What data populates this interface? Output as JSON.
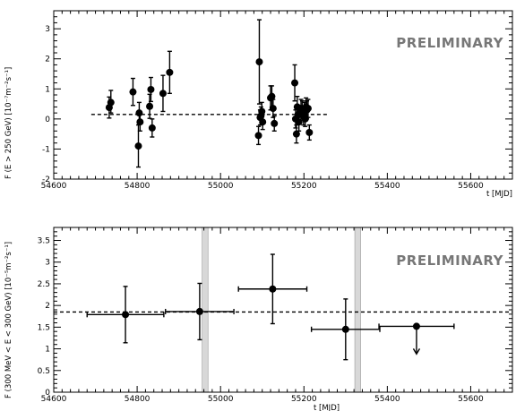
{
  "chart_data": [
    {
      "type": "scatter",
      "panel": "top",
      "watermark": "PRELIMINARY",
      "xlabel": "t [MJD]",
      "ylabel": "F (E > 250 GeV) [10⁻⁷m⁻²s⁻¹]",
      "xlim": [
        54600,
        55700
      ],
      "ylim": [
        -2,
        3.6
      ],
      "x_ticks": [
        54600,
        54800,
        55000,
        55200,
        55400,
        55600
      ],
      "y_ticks": [
        -2,
        -1,
        0,
        1,
        2,
        3
      ],
      "grid": false,
      "reference_line": {
        "y": 0.15,
        "x_range": [
          54690,
          55260
        ],
        "style": "dashed"
      },
      "points": [
        {
          "x": 54733,
          "y": 0.38,
          "err_lo": 0.35,
          "err_hi": 0.35
        },
        {
          "x": 54737,
          "y": 0.55,
          "err_lo": 0.35,
          "err_hi": 0.4
        },
        {
          "x": 54790,
          "y": 0.9,
          "err_lo": 0.45,
          "err_hi": 0.45
        },
        {
          "x": 54803,
          "y": -0.9,
          "err_lo": 0.7,
          "err_hi": 0.7
        },
        {
          "x": 54805,
          "y": 0.2,
          "err_lo": 0.35,
          "err_hi": 0.35
        },
        {
          "x": 54807,
          "y": -0.1,
          "err_lo": 0.3,
          "err_hi": 0.3
        },
        {
          "x": 54830,
          "y": 0.42,
          "err_lo": 0.4,
          "err_hi": 0.4
        },
        {
          "x": 54833,
          "y": 0.98,
          "err_lo": 0.4,
          "err_hi": 0.4
        },
        {
          "x": 54836,
          "y": -0.3,
          "err_lo": 0.3,
          "err_hi": 0.3
        },
        {
          "x": 54862,
          "y": 0.85,
          "err_lo": 0.6,
          "err_hi": 0.6
        },
        {
          "x": 54878,
          "y": 1.55,
          "err_lo": 0.7,
          "err_hi": 0.7
        },
        {
          "x": 55091,
          "y": -0.55,
          "err_lo": 0.3,
          "err_hi": 0.3
        },
        {
          "x": 55093,
          "y": 1.9,
          "err_lo": 1.4,
          "err_hi": 1.4
        },
        {
          "x": 55095,
          "y": 0.05,
          "err_lo": 0.25,
          "err_hi": 0.25
        },
        {
          "x": 55097,
          "y": 0.1,
          "err_lo": 0.3,
          "err_hi": 0.3
        },
        {
          "x": 55099,
          "y": 0.25,
          "err_lo": 0.3,
          "err_hi": 0.3
        },
        {
          "x": 55101,
          "y": -0.1,
          "err_lo": 0.25,
          "err_hi": 0.25
        },
        {
          "x": 55120,
          "y": 0.7,
          "err_lo": 0.4,
          "err_hi": 0.4
        },
        {
          "x": 55123,
          "y": 0.75,
          "err_lo": 0.35,
          "err_hi": 0.35
        },
        {
          "x": 55126,
          "y": 0.35,
          "err_lo": 0.3,
          "err_hi": 0.3
        },
        {
          "x": 55129,
          "y": -0.15,
          "err_lo": 0.25,
          "err_hi": 0.25
        },
        {
          "x": 55178,
          "y": 1.2,
          "err_lo": 0.6,
          "err_hi": 0.6
        },
        {
          "x": 55180,
          "y": 0.0,
          "err_lo": 0.3,
          "err_hi": 0.3
        },
        {
          "x": 55182,
          "y": -0.5,
          "err_lo": 0.3,
          "err_hi": 0.3
        },
        {
          "x": 55184,
          "y": 0.4,
          "err_lo": 0.35,
          "err_hi": 0.35
        },
        {
          "x": 55186,
          "y": 0.15,
          "err_lo": 0.3,
          "err_hi": 0.3
        },
        {
          "x": 55188,
          "y": -0.1,
          "err_lo": 0.3,
          "err_hi": 0.3
        },
        {
          "x": 55193,
          "y": 0.35,
          "err_lo": 0.3,
          "err_hi": 0.3
        },
        {
          "x": 55196,
          "y": 0.3,
          "err_lo": 0.3,
          "err_hi": 0.3
        },
        {
          "x": 55199,
          "y": 0.1,
          "err_lo": 0.3,
          "err_hi": 0.3
        },
        {
          "x": 55201,
          "y": 0.25,
          "err_lo": 0.3,
          "err_hi": 0.3
        },
        {
          "x": 55203,
          "y": 0.0,
          "err_lo": 0.25,
          "err_hi": 0.25
        },
        {
          "x": 55205,
          "y": 0.4,
          "err_lo": 0.3,
          "err_hi": 0.3
        },
        {
          "x": 55207,
          "y": 0.3,
          "err_lo": 0.3,
          "err_hi": 0.3
        },
        {
          "x": 55210,
          "y": 0.35,
          "err_lo": 0.3,
          "err_hi": 0.3
        },
        {
          "x": 55213,
          "y": -0.45,
          "err_lo": 0.25,
          "err_hi": 0.25
        }
      ]
    },
    {
      "type": "scatter",
      "panel": "bottom",
      "watermark": "PRELIMINARY",
      "xlabel": "t [MJD]",
      "ylabel": "F (300 MeV < E < 300 GeV) [10⁻⁵m⁻²s⁻¹]",
      "xlim": [
        54600,
        55700
      ],
      "ylim": [
        0,
        3.8
      ],
      "x_ticks": [
        54600,
        54800,
        55000,
        55200,
        55400,
        55600
      ],
      "y_ticks": [
        0,
        0.5,
        1,
        1.5,
        2,
        2.5,
        3,
        3.5
      ],
      "grid": false,
      "reference_line": {
        "y": 1.85,
        "x_range": [
          54600,
          55700
        ],
        "style": "dashed"
      },
      "bands": [
        {
          "x_start": 54956,
          "x_end": 54970
        },
        {
          "x_start": 55322,
          "x_end": 55336
        }
      ],
      "points": [
        {
          "x": 54772,
          "y": 1.79,
          "xerr": 92,
          "err_lo": 0.65,
          "err_hi": 0.65
        },
        {
          "x": 54950,
          "y": 1.86,
          "xerr": 82,
          "err_lo": 0.65,
          "err_hi": 0.65
        },
        {
          "x": 55125,
          "y": 2.38,
          "xerr": 82,
          "err_lo": 0.8,
          "err_hi": 0.8
        },
        {
          "x": 55300,
          "y": 1.45,
          "xerr": 82,
          "err_lo": 0.7,
          "err_hi": 0.7
        },
        {
          "x": 55470,
          "y": 1.52,
          "xerr": 90,
          "upper_limit": true
        }
      ]
    }
  ]
}
